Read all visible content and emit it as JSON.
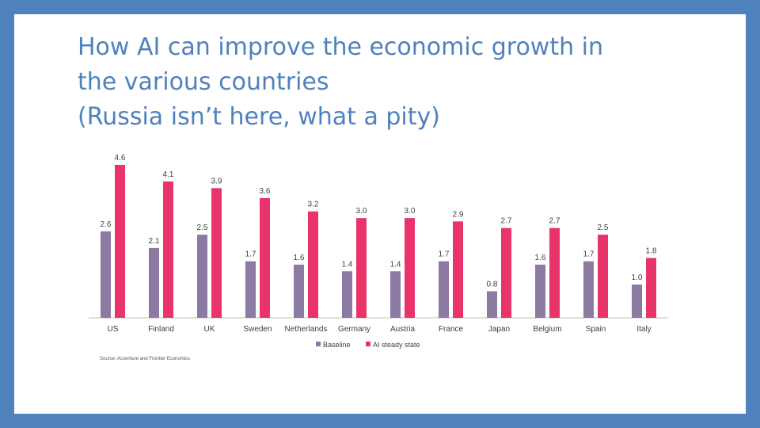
{
  "slide": {
    "title_lines": [
      "How AI can improve the economic growth in",
      "the various countries",
      "(Russia isn’t here, what a pity)"
    ],
    "source": "Source: Accenture and Frontier Economics"
  },
  "chart_data": {
    "type": "bar",
    "categories": [
      "US",
      "Finland",
      "UK",
      "Sweden",
      "Netherlands",
      "Germany",
      "Austria",
      "France",
      "Japan",
      "Belgium",
      "Spain",
      "Italy"
    ],
    "series": [
      {
        "name": "Baseline",
        "color": "#8c7aa3",
        "values": [
          2.6,
          2.1,
          2.5,
          1.7,
          1.6,
          1.4,
          1.4,
          1.7,
          0.8,
          1.6,
          1.7,
          1.0
        ]
      },
      {
        "name": "AI steady state",
        "color": "#e8336b",
        "values": [
          4.6,
          4.1,
          3.9,
          3.6,
          3.2,
          3.0,
          3.0,
          2.9,
          2.7,
          2.7,
          2.5,
          1.8
        ]
      }
    ],
    "value_labels": [
      [
        "2.6",
        "2.1",
        "2.5",
        "1.7",
        "1.6",
        "1.4",
        "1.4",
        "1.7",
        "0.8",
        "1.6",
        "1.7",
        "1.0"
      ],
      [
        "4.6",
        "4.1",
        "3.9",
        "3.6",
        "3.2",
        "3.0",
        "3.0",
        "2.9",
        "2.7",
        "2.7",
        "2.5",
        "1.8"
      ]
    ],
    "ylim": [
      0,
      4.6
    ],
    "grid": false,
    "legend_position": "bottom"
  }
}
